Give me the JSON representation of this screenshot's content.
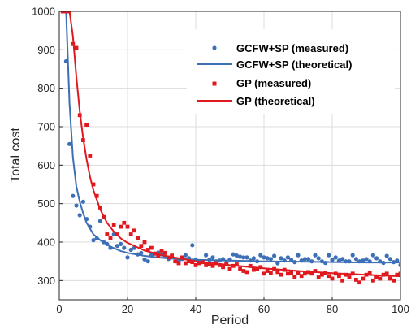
{
  "chart_data": {
    "type": "scatter",
    "title": "",
    "xlabel": "Period",
    "ylabel": "Total cost",
    "xlim": [
      0,
      100
    ],
    "ylim": [
      250,
      1000
    ],
    "x_ticks": [
      0,
      20,
      40,
      60,
      80,
      100
    ],
    "y_ticks": [
      300,
      400,
      500,
      600,
      700,
      800,
      900,
      1000
    ],
    "grid": true,
    "legend_position": "top-right",
    "series": [
      {
        "name": "GCFW+SP (measured)",
        "kind": "markers",
        "marker": "circle",
        "color": "#3d6fb6",
        "x": [
          1,
          2,
          3,
          4,
          5,
          6,
          7,
          8,
          9,
          10,
          11,
          12,
          13,
          14,
          15,
          16,
          17,
          18,
          19,
          20,
          21,
          22,
          23,
          24,
          25,
          26,
          27,
          28,
          29,
          30,
          31,
          32,
          33,
          34,
          35,
          36,
          37,
          38,
          39,
          40,
          41,
          42,
          43,
          44,
          45,
          46,
          47,
          48,
          49,
          50,
          51,
          52,
          53,
          54,
          55,
          56,
          57,
          58,
          59,
          60,
          61,
          62,
          63,
          64,
          65,
          66,
          67,
          68,
          69,
          70,
          71,
          72,
          73,
          74,
          75,
          76,
          77,
          78,
          79,
          80,
          81,
          82,
          83,
          84,
          85,
          86,
          87,
          88,
          89,
          90,
          91,
          92,
          93,
          94,
          95,
          96,
          97,
          98,
          99,
          100
        ],
        "y": [
          1000,
          870,
          655,
          520,
          495,
          470,
          505,
          460,
          440,
          405,
          410,
          455,
          400,
          395,
          385,
          420,
          390,
          395,
          385,
          360,
          380,
          385,
          368,
          372,
          355,
          350,
          366,
          370,
          373,
          368,
          362,
          356,
          360,
          350,
          352,
          356,
          366,
          358,
          392,
          355,
          350,
          348,
          366,
          354,
          360,
          350,
          352,
          356,
          346,
          355,
          368,
          365,
          362,
          360,
          360,
          352,
          358,
          350,
          366,
          360,
          358,
          356,
          364,
          345,
          358,
          352,
          360,
          354,
          348,
          366,
          352,
          356,
          356,
          350,
          366,
          358,
          350,
          346,
          366,
          354,
          360,
          352,
          356,
          350,
          350,
          366,
          356,
          350,
          352,
          356,
          350,
          366,
          358,
          350,
          346,
          364,
          356,
          348,
          352,
          340
        ]
      },
      {
        "name": "GCFW+SP (theoretical)",
        "kind": "line",
        "color": "#3d6fb6",
        "x": [
          2,
          3,
          4,
          5,
          6,
          7,
          8,
          10,
          12,
          15,
          18,
          20,
          25,
          30,
          40,
          50,
          60,
          70,
          80,
          90,
          100
        ],
        "y": [
          1000,
          760,
          620,
          545,
          505,
          475,
          450,
          420,
          405,
          388,
          377,
          372,
          364,
          359,
          354,
          352,
          350,
          349,
          348,
          347,
          347
        ]
      },
      {
        "name": "GP (measured)",
        "kind": "markers",
        "marker": "square",
        "color": "#e0191f",
        "x": [
          1,
          2,
          3,
          4,
          5,
          6,
          7,
          8,
          9,
          10,
          11,
          12,
          13,
          14,
          15,
          16,
          17,
          18,
          19,
          20,
          21,
          22,
          23,
          24,
          25,
          26,
          27,
          28,
          29,
          30,
          31,
          32,
          33,
          34,
          35,
          36,
          37,
          38,
          39,
          40,
          41,
          42,
          43,
          44,
          45,
          46,
          47,
          48,
          49,
          50,
          51,
          52,
          53,
          54,
          55,
          56,
          57,
          58,
          59,
          60,
          61,
          62,
          63,
          64,
          65,
          66,
          67,
          68,
          69,
          70,
          71,
          72,
          73,
          74,
          75,
          76,
          77,
          78,
          79,
          80,
          81,
          82,
          83,
          84,
          85,
          86,
          87,
          88,
          89,
          90,
          91,
          92,
          93,
          94,
          95,
          96,
          97,
          98,
          99,
          100
        ],
        "y": [
          1000,
          1000,
          1000,
          915,
          905,
          730,
          665,
          705,
          625,
          550,
          520,
          490,
          465,
          420,
          410,
          445,
          420,
          440,
          450,
          440,
          420,
          430,
          410,
          390,
          400,
          380,
          385,
          370,
          365,
          378,
          372,
          360,
          365,
          350,
          345,
          360,
          345,
          350,
          348,
          340,
          345,
          348,
          340,
          342,
          338,
          345,
          340,
          335,
          342,
          330,
          338,
          342,
          330,
          325,
          322,
          338,
          328,
          330,
          335,
          318,
          325,
          320,
          330,
          322,
          315,
          328,
          318,
          320,
          310,
          320,
          312,
          318,
          322,
          318,
          325,
          308,
          315,
          320,
          312,
          305,
          318,
          312,
          300,
          315,
          308,
          318,
          302,
          295,
          305,
          315,
          320,
          300,
          310,
          305,
          315,
          318,
          305,
          300,
          315,
          318
        ]
      },
      {
        "name": "GP (theoretical)",
        "kind": "line",
        "color": "#e0191f",
        "x": [
          3,
          4,
          5,
          6,
          7,
          8,
          9,
          10,
          12,
          14,
          16,
          18,
          20,
          25,
          30,
          35,
          40,
          50,
          60,
          70,
          80,
          90,
          100
        ],
        "y": [
          1000,
          935,
          830,
          740,
          670,
          615,
          570,
          535,
          485,
          450,
          427,
          410,
          398,
          378,
          366,
          358,
          350,
          340,
          332,
          325,
          319,
          315,
          311
        ]
      }
    ]
  }
}
